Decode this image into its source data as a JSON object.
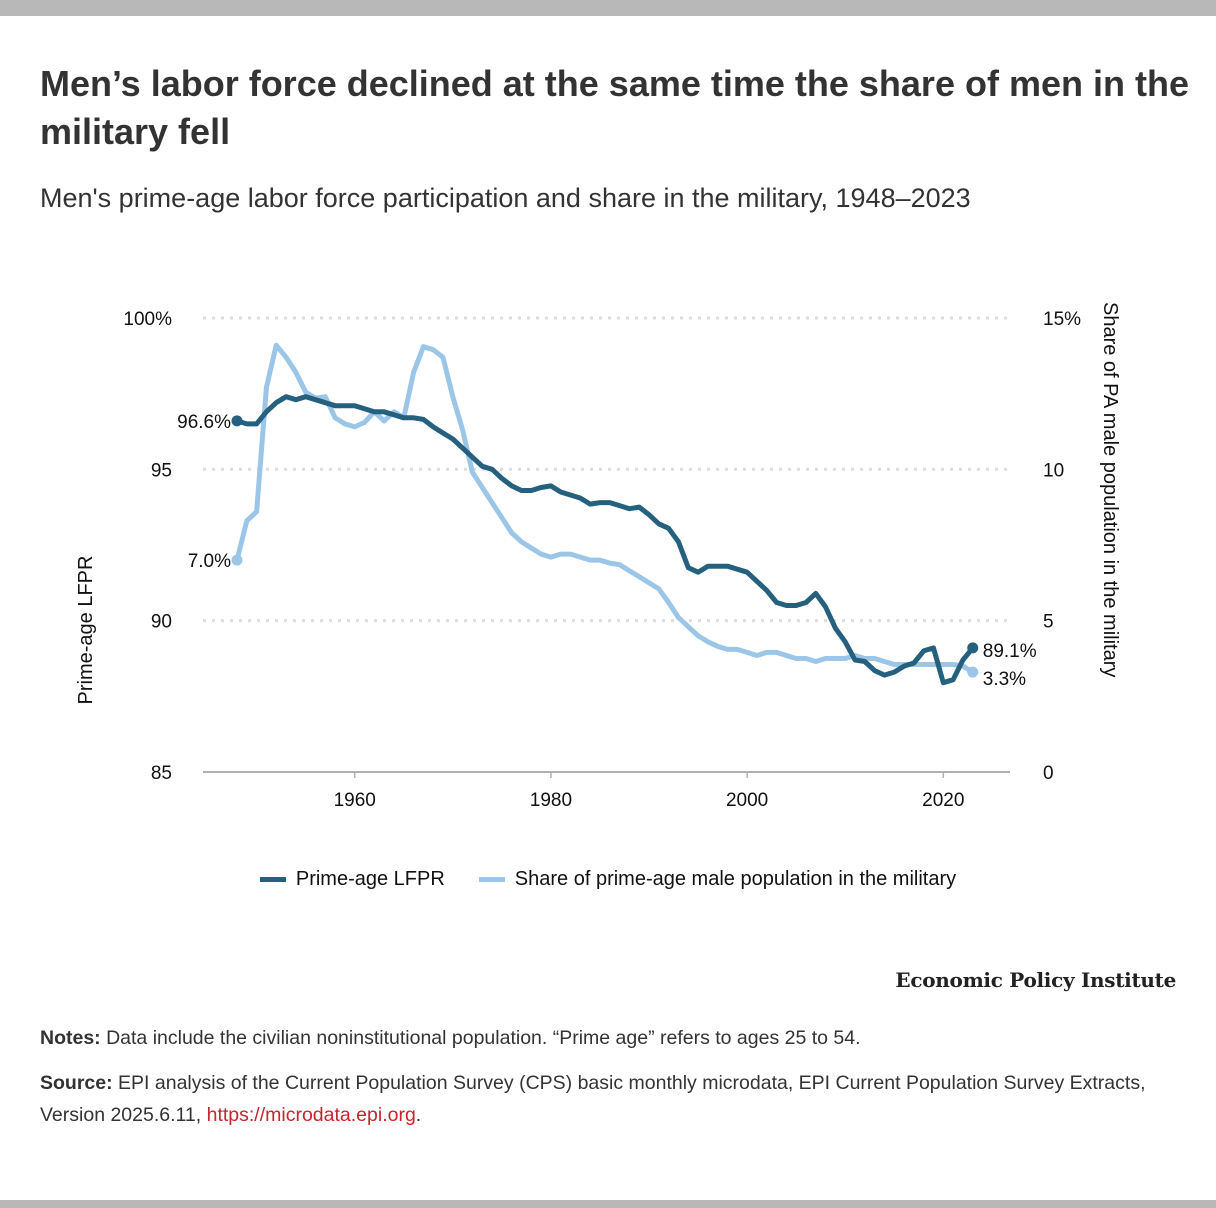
{
  "title": "Men’s labor force declined at the same time the share of men in the military fell",
  "subtitle": "Men's prime-age labor force participation and share in the military, 1948–2023",
  "brand": "Economic Policy Institute",
  "notes": {
    "label": "Notes:",
    "text": " Data include the civilian noninstitutional population. “Prime age” refers to ages 25 to 54."
  },
  "source": {
    "label": "Source:",
    "text": " EPI analysis of the Current Population Survey (CPS) basic monthly microdata, EPI Current Population Survey Extracts, Version 2025.6.11, ",
    "link": "https://microdata.epi.org",
    "end": "."
  },
  "colors": {
    "lfpr": "#25617f",
    "military": "#9cc6e8",
    "grid": "#dddddd",
    "axis": "#b0b0b0"
  },
  "chart_data": {
    "type": "line",
    "title": "Men's prime-age labor force participation and share in the military, 1948–2023",
    "xlabel": "",
    "ylabel": "Prime-age LFPR",
    "y2label": "Share of PA male population in the military",
    "xlim": [
      1944,
      2027
    ],
    "ylim": [
      85,
      100
    ],
    "y2lim": [
      0,
      15
    ],
    "xticks": [
      1960,
      1980,
      2000,
      2020
    ],
    "yticks": [
      "85",
      "90",
      "95",
      "100%"
    ],
    "y2ticks": [
      "0",
      "5",
      "10",
      "15%"
    ],
    "grid": true,
    "legend_position": "bottom",
    "x": [
      1948,
      1949,
      1950,
      1951,
      1952,
      1953,
      1954,
      1955,
      1956,
      1957,
      1958,
      1959,
      1960,
      1961,
      1962,
      1963,
      1964,
      1965,
      1966,
      1967,
      1968,
      1969,
      1970,
      1971,
      1972,
      1973,
      1974,
      1975,
      1976,
      1977,
      1978,
      1979,
      1980,
      1981,
      1982,
      1983,
      1984,
      1985,
      1986,
      1987,
      1988,
      1989,
      1990,
      1991,
      1992,
      1993,
      1994,
      1995,
      1996,
      1997,
      1998,
      1999,
      2000,
      2001,
      2002,
      2003,
      2004,
      2005,
      2006,
      2007,
      2008,
      2009,
      2010,
      2011,
      2012,
      2013,
      2014,
      2015,
      2016,
      2017,
      2018,
      2019,
      2020,
      2021,
      2022,
      2023
    ],
    "series": [
      {
        "name": "Prime-age LFPR",
        "axis": "left",
        "start_label": "96.6%",
        "end_label": "89.1%",
        "values": [
          96.6,
          96.5,
          96.5,
          96.9,
          97.2,
          97.4,
          97.3,
          97.4,
          97.3,
          97.2,
          97.1,
          97.1,
          97.1,
          97.0,
          96.9,
          96.9,
          96.8,
          96.7,
          96.7,
          96.65,
          96.4,
          96.2,
          96.0,
          95.7,
          95.4,
          95.1,
          95.0,
          94.7,
          94.45,
          94.3,
          94.3,
          94.4,
          94.45,
          94.25,
          94.15,
          94.05,
          93.85,
          93.9,
          93.9,
          93.8,
          93.7,
          93.75,
          93.5,
          93.2,
          93.05,
          92.6,
          91.75,
          91.6,
          91.8,
          91.8,
          91.8,
          91.7,
          91.6,
          91.3,
          91.0,
          90.6,
          90.5,
          90.5,
          90.6,
          90.9,
          90.45,
          89.75,
          89.3,
          88.7,
          88.65,
          88.35,
          88.2,
          88.3,
          88.5,
          88.6,
          89.0,
          89.1,
          87.95,
          88.05,
          88.7,
          89.1
        ]
      },
      {
        "name": "Share of prime-age male population in the military",
        "axis": "right",
        "start_label": "7.0%",
        "end_label": "3.3%",
        "values": [
          7.0,
          8.3,
          8.6,
          12.7,
          14.1,
          13.7,
          13.2,
          12.55,
          12.35,
          12.4,
          11.7,
          11.5,
          11.4,
          11.55,
          11.9,
          11.6,
          11.9,
          11.7,
          13.2,
          14.05,
          13.95,
          13.7,
          12.4,
          11.3,
          9.9,
          9.4,
          8.9,
          8.4,
          7.9,
          7.6,
          7.4,
          7.2,
          7.1,
          7.2,
          7.2,
          7.1,
          7.0,
          7.0,
          6.9,
          6.85,
          6.65,
          6.45,
          6.25,
          6.05,
          5.6,
          5.1,
          4.8,
          4.5,
          4.3,
          4.15,
          4.05,
          4.05,
          3.95,
          3.85,
          3.95,
          3.95,
          3.85,
          3.75,
          3.75,
          3.65,
          3.75,
          3.75,
          3.75,
          3.85,
          3.75,
          3.75,
          3.65,
          3.55,
          3.55,
          3.55,
          3.55,
          3.55,
          3.55,
          3.55,
          3.5,
          3.3
        ]
      }
    ]
  }
}
